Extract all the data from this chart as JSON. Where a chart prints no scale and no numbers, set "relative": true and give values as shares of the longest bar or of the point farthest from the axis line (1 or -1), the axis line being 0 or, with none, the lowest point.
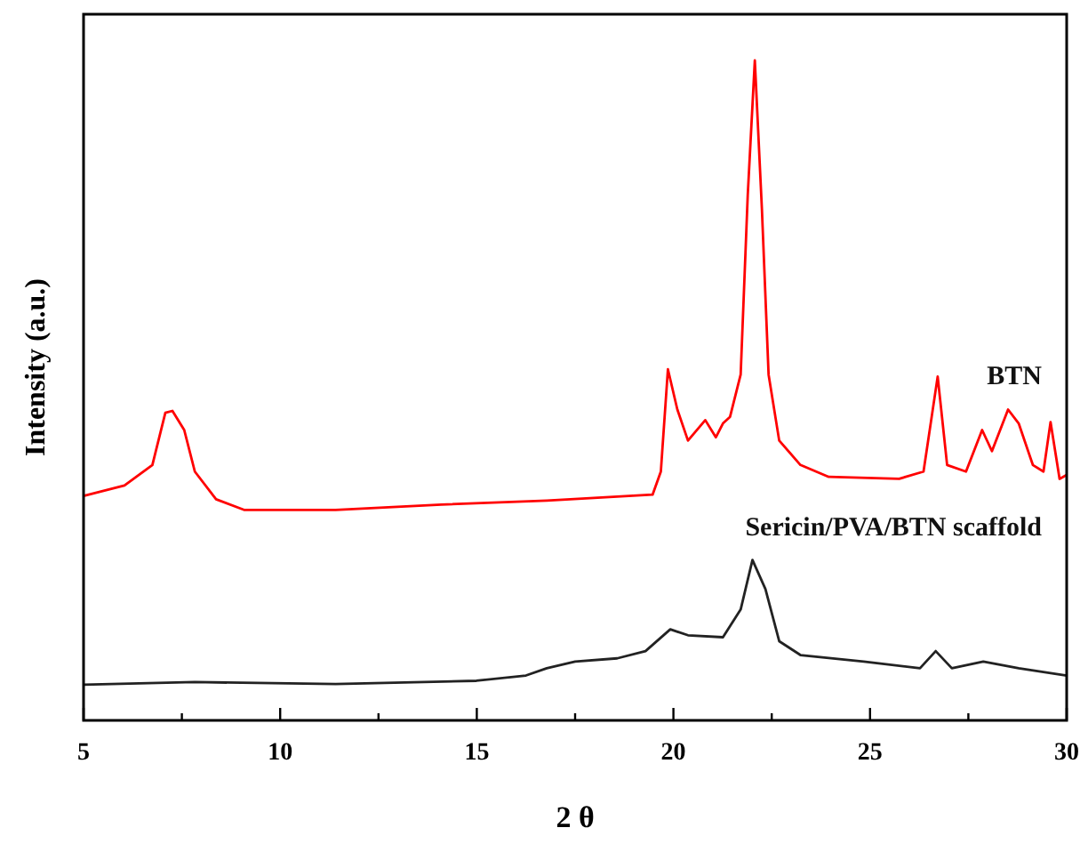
{
  "chart_data": {
    "type": "line",
    "relative": true,
    "xlabel": "2 θ",
    "ylabel": "Intensity (a.u.)",
    "xlim": [
      5,
      30
    ],
    "xticks": [
      5,
      {
        "value": 7.5,
        "label": null
      },
      10,
      {
        "value": 12.5,
        "label": null
      },
      15,
      {
        "value": 17.5,
        "label": null
      },
      20,
      {
        "value": 22.5,
        "label": null
      },
      25,
      {
        "value": 27.5,
        "label": null
      },
      30
    ],
    "line_style": "solid",
    "series": [
      {
        "name": "BTN",
        "color": "#ff0000",
        "x": [
          5,
          6.04,
          6.75,
          7.08,
          7.26,
          7.56,
          7.83,
          8.37,
          9.08,
          11.41,
          14.1,
          16.78,
          19.47,
          19.68,
          19.86,
          20.1,
          20.37,
          20.81,
          21.08,
          21.26,
          21.44,
          21.71,
          21.89,
          22.07,
          22.25,
          22.42,
          22.69,
          23.23,
          23.95,
          25.74,
          26.36,
          26.72,
          26.96,
          27.44,
          27.85,
          28.1,
          28.51,
          28.78,
          29.14,
          29.41,
          29.59,
          29.82,
          30
        ],
        "values": [
          0.34,
          0.356,
          0.387,
          0.466,
          0.469,
          0.44,
          0.377,
          0.335,
          0.319,
          0.319,
          0.327,
          0.333,
          0.342,
          0.377,
          0.532,
          0.471,
          0.424,
          0.455,
          0.429,
          0.45,
          0.46,
          0.524,
          0.796,
          1,
          0.775,
          0.524,
          0.424,
          0.387,
          0.369,
          0.366,
          0.377,
          0.521,
          0.387,
          0.377,
          0.44,
          0.408,
          0.471,
          0.45,
          0.387,
          0.377,
          0.452,
          0.366,
          0.372
        ]
      },
      {
        "name": "Sericin/PVA/BTN scaffold",
        "color": "#222222",
        "x": [
          5,
          7.83,
          11.41,
          14.99,
          16.25,
          16.78,
          17.5,
          18.57,
          19.29,
          19.92,
          20.37,
          21.26,
          21.71,
          22.01,
          22.34,
          22.69,
          23.23,
          24.84,
          26.27,
          26.67,
          27.08,
          27.88,
          28.78,
          30
        ],
        "values": [
          0.054,
          0.058,
          0.055,
          0.06,
          0.068,
          0.079,
          0.089,
          0.094,
          0.105,
          0.138,
          0.129,
          0.126,
          0.168,
          0.243,
          0.199,
          0.12,
          0.099,
          0.089,
          0.079,
          0.105,
          0.079,
          0.089,
          0.079,
          0.068
        ]
      }
    ]
  }
}
